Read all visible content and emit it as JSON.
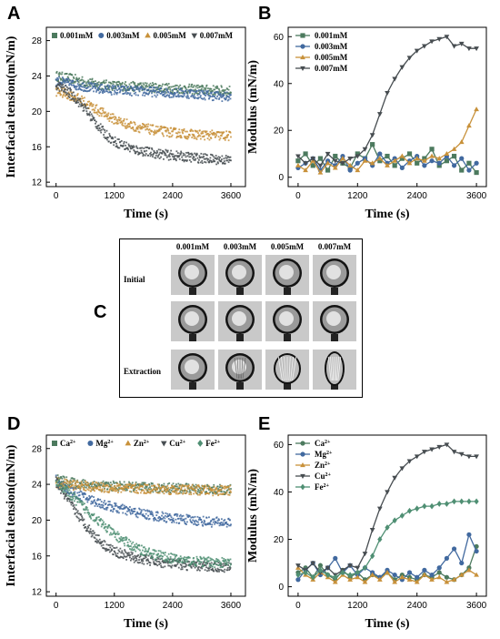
{
  "panels": {
    "A": "A",
    "B": "B",
    "C": "C",
    "D": "D",
    "E": "E"
  },
  "colors": {
    "green": "#4c7a5e",
    "blue": "#41699f",
    "orange": "#c8913a",
    "gray": "#474d51",
    "teal": "#4f8f73"
  },
  "panel_c": {
    "columns": [
      "0.001mM",
      "0.003mM",
      "0.005mM",
      "0.007mM"
    ],
    "rows": [
      "Initial",
      "",
      "Extraction"
    ]
  },
  "chart_data": [
    {
      "id": "A",
      "type": "scatter",
      "xlabel": "Time (s)",
      "ylabel": "Interfacial tension(mN/m)",
      "xlim": [
        -200,
        3900
      ],
      "ylim": [
        11.5,
        29.5
      ],
      "xticks": [
        0,
        1200,
        2400,
        3600
      ],
      "yticks": [
        12,
        16,
        20,
        24,
        28
      ],
      "legend_position": "top",
      "series": [
        {
          "name": "0.001mM",
          "color": "#4c7a5e",
          "marker": "square",
          "x": [
            0,
            200,
            400,
            600,
            800,
            1000,
            1200,
            1600,
            2000,
            2400,
            2800,
            3200,
            3600
          ],
          "y": [
            24.0,
            23.8,
            23.6,
            23.3,
            23.1,
            23.0,
            22.9,
            22.8,
            22.7,
            22.6,
            22.5,
            22.4,
            22.3
          ]
        },
        {
          "name": "0.003mM",
          "color": "#41699f",
          "marker": "circle",
          "x": [
            0,
            200,
            400,
            600,
            800,
            1000,
            1200,
            1600,
            2000,
            2400,
            2800,
            3200,
            3600
          ],
          "y": [
            23.5,
            23.2,
            23.0,
            22.8,
            22.6,
            22.5,
            22.4,
            22.3,
            22.2,
            22.1,
            22.0,
            21.8,
            21.6
          ]
        },
        {
          "name": "0.005mM",
          "color": "#c8913a",
          "marker": "triangle-up",
          "x": [
            0,
            200,
            400,
            600,
            800,
            1000,
            1200,
            1600,
            2000,
            2400,
            2800,
            3200,
            3600
          ],
          "y": [
            22.3,
            22.0,
            21.6,
            21.0,
            20.3,
            19.7,
            19.1,
            18.3,
            17.9,
            17.6,
            17.4,
            17.3,
            17.2
          ]
        },
        {
          "name": "0.007mM",
          "color": "#474d51",
          "marker": "triangle-down",
          "x": [
            0,
            200,
            400,
            600,
            800,
            1000,
            1200,
            1600,
            2000,
            2400,
            2800,
            3200,
            3600
          ],
          "y": [
            23.0,
            22.4,
            21.5,
            20.3,
            18.8,
            17.5,
            16.6,
            15.7,
            15.3,
            15.0,
            14.8,
            14.6,
            14.5
          ]
        }
      ]
    },
    {
      "id": "B",
      "type": "line",
      "xlabel": "Time (s)",
      "ylabel": "Modulus (mN/m)",
      "xlim": [
        -200,
        3800
      ],
      "ylim": [
        -4,
        64
      ],
      "xticks": [
        0,
        1200,
        2400,
        3600
      ],
      "yticks": [
        0,
        20,
        40,
        60
      ],
      "legend_position": "top-left",
      "series": [
        {
          "name": "0.001mM",
          "color": "#4c7a5e",
          "marker": "square",
          "x": [
            0,
            150,
            300,
            450,
            600,
            750,
            900,
            1050,
            1200,
            1350,
            1500,
            1650,
            1800,
            1950,
            2100,
            2250,
            2400,
            2550,
            2700,
            2850,
            3000,
            3150,
            3300,
            3450,
            3600
          ],
          "y": [
            7,
            10,
            5,
            8,
            3,
            9,
            6,
            4,
            10,
            8,
            14,
            7,
            9,
            5,
            8,
            10,
            6,
            8,
            12,
            5,
            7,
            9,
            3,
            6,
            2
          ]
        },
        {
          "name": "0.003mM",
          "color": "#41699f",
          "marker": "circle",
          "x": [
            0,
            150,
            300,
            450,
            600,
            750,
            900,
            1050,
            1200,
            1350,
            1500,
            1650,
            1800,
            1950,
            2100,
            2250,
            2400,
            2550,
            2700,
            2850,
            3000,
            3150,
            3300,
            3450,
            3600
          ],
          "y": [
            4,
            6,
            8,
            3,
            7,
            5,
            9,
            3,
            6,
            8,
            5,
            10,
            6,
            8,
            4,
            7,
            9,
            5,
            7,
            6,
            9,
            5,
            8,
            3,
            6
          ]
        },
        {
          "name": "0.005mM",
          "color": "#c8913a",
          "marker": "triangle-up",
          "x": [
            0,
            150,
            300,
            450,
            600,
            750,
            900,
            1050,
            1200,
            1350,
            1500,
            1650,
            1800,
            1950,
            2100,
            2250,
            2400,
            2550,
            2700,
            2850,
            3000,
            3150,
            3300,
            3450,
            3600
          ],
          "y": [
            5,
            3,
            7,
            2,
            6,
            4,
            8,
            5,
            3,
            7,
            6,
            8,
            5,
            7,
            9,
            6,
            8,
            7,
            9,
            8,
            10,
            12,
            15,
            22,
            29
          ]
        },
        {
          "name": "0.007mM",
          "color": "#474d51",
          "marker": "triangle-down",
          "x": [
            0,
            150,
            300,
            450,
            600,
            750,
            900,
            1050,
            1200,
            1350,
            1500,
            1650,
            1800,
            1950,
            2100,
            2250,
            2400,
            2550,
            2700,
            2850,
            3000,
            3150,
            3300,
            3450,
            3600
          ],
          "y": [
            9,
            6,
            8,
            5,
            10,
            7,
            6,
            8,
            9,
            12,
            18,
            27,
            36,
            42,
            47,
            51,
            54,
            56,
            58,
            59,
            60,
            56,
            57,
            55,
            55
          ]
        }
      ]
    },
    {
      "id": "D",
      "type": "scatter",
      "xlabel": "Time (s)",
      "ylabel": "Interfacial tension(mN/m)",
      "xlim": [
        -200,
        3900
      ],
      "ylim": [
        11.5,
        29.5
      ],
      "xticks": [
        0,
        1200,
        2400,
        3600
      ],
      "yticks": [
        12,
        16,
        20,
        24,
        28
      ],
      "legend_position": "top",
      "series": [
        {
          "name": "Ca2+",
          "color": "#4c7a5e",
          "marker": "square",
          "x": [
            0,
            200,
            400,
            600,
            800,
            1000,
            1200,
            1600,
            2000,
            2400,
            2800,
            3200,
            3600
          ],
          "y": [
            24.6,
            24.3,
            24.1,
            24.0,
            23.9,
            23.8,
            23.8,
            23.7,
            23.6,
            23.6,
            23.5,
            23.4,
            23.4
          ]
        },
        {
          "name": "Mg2+",
          "color": "#41699f",
          "marker": "circle",
          "x": [
            0,
            200,
            400,
            600,
            800,
            1000,
            1200,
            1600,
            2000,
            2400,
            2800,
            3200,
            3600
          ],
          "y": [
            24.5,
            23.6,
            23.0,
            22.5,
            22.1,
            21.7,
            21.4,
            20.9,
            20.5,
            20.2,
            20.0,
            19.8,
            19.7
          ]
        },
        {
          "name": "Zn2+",
          "color": "#c8913a",
          "marker": "triangle-up",
          "x": [
            0,
            200,
            400,
            600,
            800,
            1000,
            1200,
            1600,
            2000,
            2400,
            2800,
            3200,
            3600
          ],
          "y": [
            24.2,
            24.0,
            23.9,
            23.8,
            23.7,
            23.6,
            23.6,
            23.5,
            23.5,
            23.4,
            23.4,
            23.3,
            23.3
          ]
        },
        {
          "name": "Cu2+",
          "color": "#474d51",
          "marker": "triangle-down",
          "x": [
            0,
            200,
            400,
            600,
            800,
            1000,
            1200,
            1600,
            2000,
            2400,
            2800,
            3200,
            3600
          ],
          "y": [
            24.3,
            22.6,
            21.0,
            19.5,
            18.2,
            17.2,
            16.5,
            15.8,
            15.4,
            15.1,
            14.9,
            14.8,
            14.7
          ]
        },
        {
          "name": "Fe2+",
          "color": "#4f8f73",
          "marker": "diamond",
          "x": [
            0,
            200,
            400,
            600,
            800,
            1000,
            1200,
            1600,
            2000,
            2400,
            2800,
            3200,
            3600
          ],
          "y": [
            24.4,
            23.3,
            22.3,
            21.3,
            20.3,
            19.3,
            18.4,
            17.0,
            16.2,
            15.7,
            15.4,
            15.3,
            15.2
          ]
        }
      ]
    },
    {
      "id": "E",
      "type": "line",
      "xlabel": "Time (s)",
      "ylabel": "Modulus (mN/m)",
      "xlim": [
        -200,
        3800
      ],
      "ylim": [
        -4,
        64
      ],
      "xticks": [
        0,
        1200,
        2400,
        3600
      ],
      "yticks": [
        0,
        20,
        40,
        60
      ],
      "legend_position": "top-left",
      "series": [
        {
          "name": "Ca2+",
          "color": "#4c7a5e",
          "marker": "circle",
          "x": [
            0,
            150,
            300,
            450,
            600,
            750,
            900,
            1050,
            1200,
            1350,
            1500,
            1650,
            1800,
            1950,
            2100,
            2250,
            2400,
            2550,
            2700,
            2850,
            3000,
            3150,
            3300,
            3450,
            3600
          ],
          "y": [
            6,
            8,
            4,
            9,
            5,
            3,
            7,
            4,
            6,
            3,
            5,
            4,
            6,
            3,
            5,
            4,
            3,
            5,
            4,
            6,
            4,
            3,
            5,
            8,
            17
          ]
        },
        {
          "name": "Mg2+",
          "color": "#41699f",
          "marker": "circle",
          "x": [
            0,
            150,
            300,
            450,
            600,
            750,
            900,
            1050,
            1200,
            1350,
            1500,
            1650,
            1800,
            1950,
            2100,
            2250,
            2400,
            2550,
            2700,
            2850,
            3000,
            3150,
            3300,
            3450,
            3600
          ],
          "y": [
            3,
            7,
            10,
            5,
            8,
            12,
            6,
            9,
            5,
            8,
            6,
            4,
            7,
            5,
            3,
            6,
            4,
            7,
            5,
            8,
            12,
            16,
            10,
            22,
            15
          ]
        },
        {
          "name": "Zn2+",
          "color": "#c8913a",
          "marker": "triangle-up",
          "x": [
            0,
            150,
            300,
            450,
            600,
            750,
            900,
            1050,
            1200,
            1350,
            1500,
            1650,
            1800,
            1950,
            2100,
            2250,
            2400,
            2550,
            2700,
            2850,
            3000,
            3150,
            3300,
            3450,
            3600
          ],
          "y": [
            8,
            5,
            3,
            6,
            4,
            2,
            5,
            3,
            4,
            2,
            5,
            3,
            6,
            2,
            4,
            3,
            2,
            5,
            3,
            4,
            2,
            3,
            5,
            7,
            5
          ]
        },
        {
          "name": "Cu2+",
          "color": "#474d51",
          "marker": "triangle-down",
          "x": [
            0,
            150,
            300,
            450,
            600,
            750,
            900,
            1050,
            1200,
            1350,
            1500,
            1650,
            1800,
            1950,
            2100,
            2250,
            2400,
            2550,
            2700,
            2850,
            3000,
            3150,
            3300,
            3450,
            3600
          ],
          "y": [
            9,
            7,
            10,
            6,
            8,
            5,
            7,
            9,
            8,
            14,
            24,
            33,
            40,
            46,
            50,
            53,
            55,
            57,
            58,
            59,
            60,
            57,
            56,
            55,
            55
          ]
        },
        {
          "name": "Fe2+",
          "color": "#4f8f73",
          "marker": "diamond",
          "x": [
            0,
            150,
            300,
            450,
            600,
            750,
            900,
            1050,
            1200,
            1350,
            1500,
            1650,
            1800,
            1950,
            2100,
            2250,
            2400,
            2550,
            2700,
            2850,
            3000,
            3150,
            3300,
            3450,
            3600
          ],
          "y": [
            5,
            6,
            4,
            7,
            5,
            4,
            6,
            5,
            6,
            8,
            13,
            20,
            25,
            28,
            30,
            32,
            33,
            34,
            34,
            35,
            35,
            36,
            36,
            36,
            36
          ]
        }
      ]
    }
  ]
}
